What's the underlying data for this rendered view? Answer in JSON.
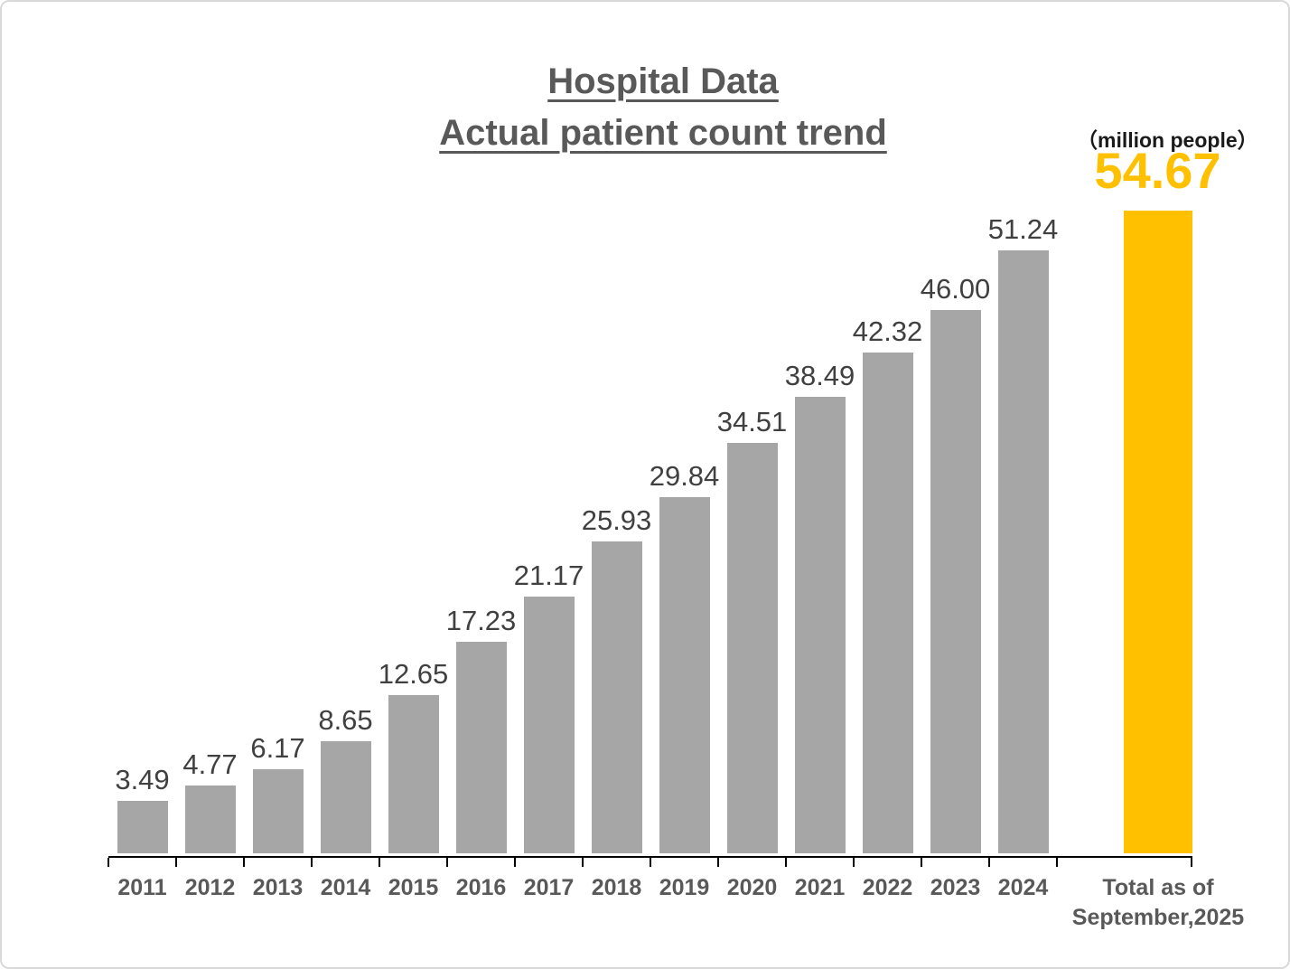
{
  "header": {
    "title_line1": "Hospital Data",
    "title_line2": "Actual patient count trend",
    "unit_note": "（million people）",
    "total_value": "54.67"
  },
  "chart_data": {
    "type": "bar",
    "title": "Hospital Data - Actual patient count trend",
    "unit": "million people",
    "categories": [
      "2011",
      "2012",
      "2013",
      "2014",
      "2015",
      "2016",
      "2017",
      "2018",
      "2019",
      "2020",
      "2021",
      "2022",
      "2023",
      "2024",
      "Total as of\nSeptember,2025"
    ],
    "values": [
      3.49,
      4.77,
      6.17,
      8.65,
      12.65,
      17.23,
      21.17,
      25.93,
      29.84,
      34.51,
      38.49,
      42.32,
      46.0,
      51.24,
      54.67
    ],
    "data_labels": [
      "3.49",
      "4.77",
      "6.17",
      "8.65",
      "12.65",
      "17.23",
      "21.17",
      "25.93",
      "29.84",
      "34.51",
      "38.49",
      "42.32",
      "46.00",
      "51.24",
      ""
    ],
    "highlight_index": 14,
    "highlight_label": "54.67",
    "bar_color_default": "#A6A6A6",
    "bar_color_highlight": "#FFC000",
    "ylim": [
      0,
      56
    ],
    "grid": false,
    "legend": false,
    "y_axis_visible": false
  }
}
